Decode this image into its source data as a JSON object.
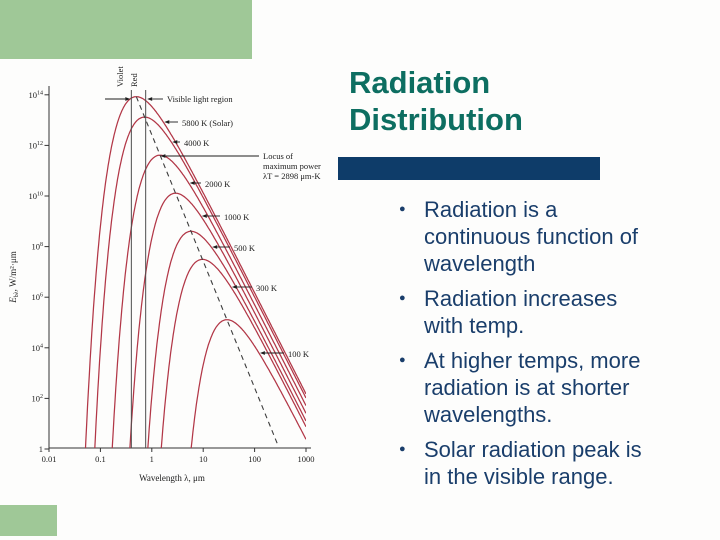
{
  "slide": {
    "title": "Radiation\nDistribution",
    "bullets": [
      "Radiation is a\ncontinuous function of\nwavelength",
      "Radiation increases\nwith temp.",
      "At higher temps, more\nradiation is at shorter\nwavelengths.",
      "Solar radiation peak is\nin the visible range."
    ]
  },
  "colors": {
    "accent_green": "#9fc897",
    "title_teal": "#0d6e61",
    "bar_navy": "#0e3c69",
    "text_navy": "#1a3e6b",
    "curve_red": "#b23747",
    "ink": "#1d1d1d"
  },
  "chart_data": {
    "type": "line",
    "x_scale": "log",
    "y_scale": "log",
    "xlabel": "Wavelength λ, μm",
    "ylabel_symbol": "E",
    "ylabel_subscript": "bλ",
    "ylabel_units": ", W/m²·μm",
    "xlim": [
      0.01,
      1000
    ],
    "ylim": [
      1,
      100000000000000.0
    ],
    "x_ticks": [
      {
        "label": "0.01",
        "value": 0.01
      },
      {
        "label": "0.1",
        "value": 0.1
      },
      {
        "label": "1",
        "value": 1
      },
      {
        "label": "10",
        "value": 10
      },
      {
        "label": "100",
        "value": 100
      },
      {
        "label": "1000",
        "value": 1000
      }
    ],
    "y_tick_exponents": [
      14,
      12,
      10,
      8,
      6,
      4,
      2,
      0
    ],
    "series": [
      {
        "label": "5800 K (Solar)",
        "T": 5800
      },
      {
        "label": "4000 K",
        "T": 4000
      },
      {
        "label": "2000 K",
        "T": 2000
      },
      {
        "label": "1000 K",
        "T": 1000
      },
      {
        "label": "500 K",
        "T": 500
      },
      {
        "label": "300 K",
        "T": 300
      },
      {
        "label": "100 K",
        "T": 100
      }
    ],
    "locus": {
      "label_lines": [
        "Locus of",
        "maximum power",
        "λT = 2898 μm-K"
      ],
      "lambdaT": 2898
    },
    "visible": {
      "label": "Visible light region",
      "violet": {
        "label": "Violet",
        "wavelength_um": 0.4
      },
      "red": {
        "label": "Red",
        "wavelength_um": 0.76
      }
    }
  }
}
